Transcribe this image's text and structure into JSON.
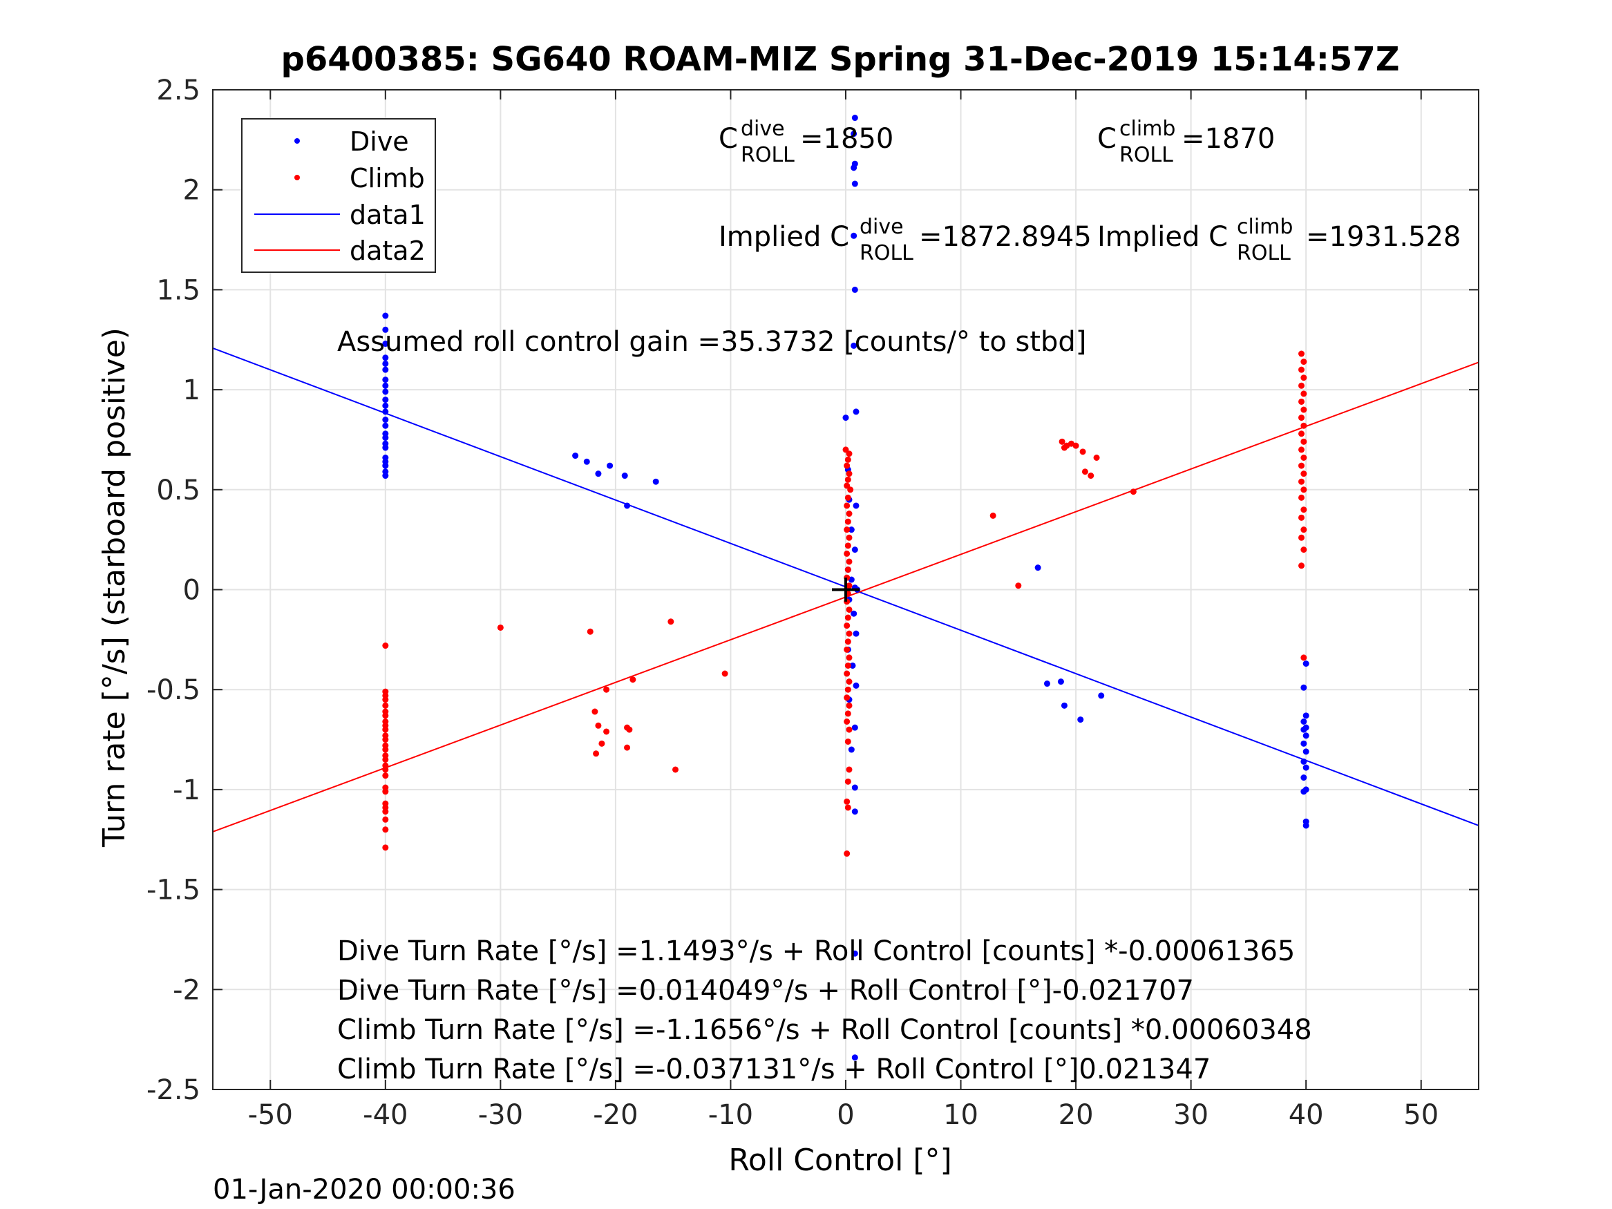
{
  "chart_data": {
    "type": "scatter",
    "title": "p6400385: SG640 ROAM-MIZ Spring 31-Dec-2019 15:14:57Z",
    "xlabel": "Roll Control [°]",
    "ylabel": "Turn rate [°/s] (starboard positive)",
    "xlim": [
      -55,
      55
    ],
    "ylim": [
      -2.5,
      2.5
    ],
    "xticks": [
      -50,
      -40,
      -30,
      -20,
      -10,
      0,
      10,
      20,
      30,
      40,
      50
    ],
    "xtick_labels": [
      "-50",
      "-40",
      "-30",
      "-20",
      "-10",
      "0",
      "10",
      "20",
      "30",
      "40",
      "50"
    ],
    "yticks": [
      2.5,
      2,
      1.5,
      1,
      0.5,
      0,
      -0.5,
      -1,
      -1.5,
      -2,
      -2.5
    ],
    "ytick_labels": [
      "2.5",
      "2",
      "1.5",
      "1",
      "0.5",
      "0",
      "-0.5",
      "-1",
      "-1.5",
      "-2",
      "-2.5"
    ],
    "grid": true,
    "legend": {
      "placement": "top-left",
      "entries": [
        {
          "label": "Dive",
          "style": "marker",
          "color": "#0000ff"
        },
        {
          "label": "Climb",
          "style": "marker",
          "color": "#ff0000"
        },
        {
          "label": "data1",
          "style": "line",
          "color": "#0000ff"
        },
        {
          "label": "data2",
          "style": "line",
          "color": "#ff0000"
        }
      ]
    },
    "lines": [
      {
        "name": "data1",
        "color": "#0000ff",
        "x": [
          -55,
          55
        ],
        "y": [
          1.208,
          -1.18
        ]
      },
      {
        "name": "data2",
        "color": "#ff0000",
        "x": [
          -55,
          55
        ],
        "y": [
          -1.211,
          1.137
        ]
      }
    ],
    "series": [
      {
        "name": "Dive",
        "color": "#0000ff",
        "points": [
          [
            -40,
            1.37
          ],
          [
            -40,
            1.3
          ],
          [
            -40,
            1.23
          ],
          [
            -40,
            1.16
          ],
          [
            -40,
            1.13
          ],
          [
            -40,
            1.1
          ],
          [
            -40,
            1.05
          ],
          [
            -40,
            1.02
          ],
          [
            -40,
            0.99
          ],
          [
            -40,
            0.95
          ],
          [
            -40,
            0.92
          ],
          [
            -40,
            0.89
          ],
          [
            -40,
            0.85
          ],
          [
            -40,
            0.82
          ],
          [
            -40,
            0.78
          ],
          [
            -40,
            0.76
          ],
          [
            -40,
            0.73
          ],
          [
            -40,
            0.71
          ],
          [
            -40,
            0.66
          ],
          [
            -40,
            0.64
          ],
          [
            -40,
            0.62
          ],
          [
            -40,
            0.59
          ],
          [
            -40,
            0.57
          ],
          [
            -23.5,
            0.67
          ],
          [
            -22.5,
            0.64
          ],
          [
            -21.5,
            0.58
          ],
          [
            -20.5,
            0.62
          ],
          [
            -19.2,
            0.57
          ],
          [
            -19.0,
            0.42
          ],
          [
            -16.5,
            0.54
          ],
          [
            0.8,
            2.36
          ],
          [
            0.7,
            2.28
          ],
          [
            0.8,
            2.13
          ],
          [
            0.7,
            2.11
          ],
          [
            0.8,
            2.03
          ],
          [
            0.7,
            1.77
          ],
          [
            0.8,
            1.5
          ],
          [
            0.7,
            1.22
          ],
          [
            0.0,
            0.86
          ],
          [
            0.9,
            0.89
          ],
          [
            0.2,
            0.6
          ],
          [
            0.9,
            0.42
          ],
          [
            0.3,
            0.45
          ],
          [
            0.5,
            0.3
          ],
          [
            0.8,
            0.2
          ],
          [
            0.2,
            0.1
          ],
          [
            0.5,
            0.05
          ],
          [
            0.8,
            0.01
          ],
          [
            1.0,
            0.0
          ],
          [
            0.3,
            -0.05
          ],
          [
            0.7,
            -0.12
          ],
          [
            0.9,
            -0.22
          ],
          [
            0.2,
            -0.3
          ],
          [
            0.6,
            -0.38
          ],
          [
            0.9,
            -0.48
          ],
          [
            0.3,
            -0.55
          ],
          [
            0.8,
            -0.69
          ],
          [
            0.5,
            -0.8
          ],
          [
            0.8,
            -0.99
          ],
          [
            0.8,
            -1.11
          ],
          [
            0.8,
            -1.82
          ],
          [
            0.8,
            -2.34
          ],
          [
            16.7,
            0.11
          ],
          [
            17.5,
            -0.47
          ],
          [
            18.7,
            -0.46
          ],
          [
            19.0,
            -0.58
          ],
          [
            20.4,
            -0.65
          ],
          [
            22.2,
            -0.53
          ],
          [
            40,
            -0.37
          ],
          [
            39.8,
            -0.49
          ],
          [
            40,
            -0.63
          ],
          [
            39.8,
            -0.66
          ],
          [
            40,
            -0.69
          ],
          [
            39.8,
            -0.7
          ],
          [
            40,
            -0.73
          ],
          [
            39.8,
            -0.77
          ],
          [
            40,
            -0.81
          ],
          [
            39.8,
            -0.86
          ],
          [
            40,
            -0.89
          ],
          [
            39.8,
            -0.94
          ],
          [
            40,
            -1.0
          ],
          [
            39.8,
            -1.01
          ],
          [
            40,
            -1.16
          ],
          [
            40,
            -1.18
          ]
        ]
      },
      {
        "name": "Climb",
        "color": "#ff0000",
        "points": [
          [
            -40,
            -0.28
          ],
          [
            -40,
            -0.51
          ],
          [
            -40,
            -0.53
          ],
          [
            -40,
            -0.55
          ],
          [
            -40,
            -0.58
          ],
          [
            -40,
            -0.61
          ],
          [
            -40,
            -0.63
          ],
          [
            -40,
            -0.66
          ],
          [
            -40,
            -0.68
          ],
          [
            -40,
            -0.7
          ],
          [
            -40,
            -0.73
          ],
          [
            -40,
            -0.75
          ],
          [
            -40,
            -0.78
          ],
          [
            -40,
            -0.8
          ],
          [
            -40,
            -0.83
          ],
          [
            -40,
            -0.85
          ],
          [
            -40,
            -0.88
          ],
          [
            -40,
            -0.9
          ],
          [
            -40,
            -0.93
          ],
          [
            -40,
            -0.99
          ],
          [
            -40,
            -1.01
          ],
          [
            -40,
            -1.07
          ],
          [
            -40,
            -1.09
          ],
          [
            -40,
            -1.11
          ],
          [
            -40,
            -1.15
          ],
          [
            -40,
            -1.2
          ],
          [
            -40,
            -1.29
          ],
          [
            -30,
            -0.19
          ],
          [
            -22.2,
            -0.21
          ],
          [
            -20.8,
            -0.5
          ],
          [
            -21.8,
            -0.61
          ],
          [
            -21.5,
            -0.68
          ],
          [
            -20.8,
            -0.71
          ],
          [
            -21.2,
            -0.77
          ],
          [
            -21.7,
            -0.82
          ],
          [
            -19.0,
            -0.69
          ],
          [
            -18.8,
            -0.7
          ],
          [
            -19.0,
            -0.79
          ],
          [
            -18.5,
            -0.45
          ],
          [
            -15.2,
            -0.16
          ],
          [
            -14.8,
            -0.9
          ],
          [
            -10.5,
            -0.42
          ],
          [
            0,
            0.7
          ],
          [
            0.3,
            0.68
          ],
          [
            0.2,
            0.65
          ],
          [
            0.1,
            0.62
          ],
          [
            0.3,
            0.58
          ],
          [
            0.2,
            0.55
          ],
          [
            0.1,
            0.52
          ],
          [
            0.4,
            0.5
          ],
          [
            0.2,
            0.46
          ],
          [
            0.1,
            0.42
          ],
          [
            0.3,
            0.38
          ],
          [
            0.2,
            0.34
          ],
          [
            0.1,
            0.3
          ],
          [
            0.3,
            0.26
          ],
          [
            0.2,
            0.22
          ],
          [
            0.1,
            0.18
          ],
          [
            0.3,
            0.14
          ],
          [
            0.2,
            0.1
          ],
          [
            0.1,
            0.06
          ],
          [
            0.3,
            0.02
          ],
          [
            0.2,
            -0.02
          ],
          [
            0.1,
            -0.06
          ],
          [
            0.3,
            -0.1
          ],
          [
            0.2,
            -0.14
          ],
          [
            0.1,
            -0.18
          ],
          [
            0.3,
            -0.22
          ],
          [
            0.2,
            -0.26
          ],
          [
            0.1,
            -0.3
          ],
          [
            0.3,
            -0.34
          ],
          [
            0.2,
            -0.38
          ],
          [
            0.1,
            -0.42
          ],
          [
            0.3,
            -0.46
          ],
          [
            0.2,
            -0.5
          ],
          [
            0.1,
            -0.54
          ],
          [
            0.3,
            -0.58
          ],
          [
            0.2,
            -0.62
          ],
          [
            0.1,
            -0.66
          ],
          [
            0.3,
            -0.7
          ],
          [
            0.2,
            -0.76
          ],
          [
            0.3,
            -0.9
          ],
          [
            0.2,
            -0.96
          ],
          [
            0.1,
            -1.06
          ],
          [
            0.2,
            -1.09
          ],
          [
            0.1,
            -1.32
          ],
          [
            12.8,
            0.37
          ],
          [
            15,
            0.02
          ],
          [
            18.8,
            0.74
          ],
          [
            19.2,
            0.72
          ],
          [
            19.0,
            0.71
          ],
          [
            19.6,
            0.73
          ],
          [
            20.0,
            0.72
          ],
          [
            20.6,
            0.69
          ],
          [
            20.8,
            0.59
          ],
          [
            21.3,
            0.57
          ],
          [
            21.8,
            0.66
          ],
          [
            25,
            0.49
          ],
          [
            39.6,
            1.18
          ],
          [
            39.8,
            1.14
          ],
          [
            39.6,
            1.1
          ],
          [
            39.8,
            1.06
          ],
          [
            39.6,
            1.02
          ],
          [
            39.8,
            0.98
          ],
          [
            39.6,
            0.94
          ],
          [
            39.8,
            0.9
          ],
          [
            39.6,
            0.86
          ],
          [
            39.8,
            0.82
          ],
          [
            39.6,
            0.78
          ],
          [
            39.8,
            0.74
          ],
          [
            39.6,
            0.7
          ],
          [
            39.8,
            0.66
          ],
          [
            39.6,
            0.62
          ],
          [
            39.8,
            0.58
          ],
          [
            39.6,
            0.54
          ],
          [
            39.8,
            0.5
          ],
          [
            39.6,
            0.46
          ],
          [
            39.8,
            0.4
          ],
          [
            39.6,
            0.36
          ],
          [
            39.8,
            0.3
          ],
          [
            39.6,
            0.26
          ],
          [
            39.8,
            0.2
          ],
          [
            39.6,
            0.12
          ],
          [
            39.8,
            -0.34
          ]
        ]
      }
    ],
    "annotations": {
      "c_dive_prefix": "C",
      "c_dive_sup": "dive",
      "c_dive_sub": "ROLL",
      "c_dive_value": " =1850",
      "c_climb_prefix": "C",
      "c_climb_sup": "climb",
      "c_climb_sub": "ROLL",
      "c_climb_value": " =1870",
      "implied_dive_prefix": "Implied C",
      "implied_dive_sup": "dive",
      "implied_dive_sub": "ROLL",
      "implied_dive_value": " =1872.8945",
      "implied_climb_prefix": "Implied C",
      "implied_climb_sup": "climb",
      "implied_climb_sub": "ROLL",
      "implied_climb_value": " =1931.528",
      "gain": "Assumed roll control gain =35.3732 [counts/° to stbd]",
      "eq1": "Dive Turn Rate [°/s] =1.1493°/s + Roll Control [counts] *-0.00061365",
      "eq2": "Dive Turn Rate [°/s] =0.014049°/s + Roll Control [°]-0.021707",
      "eq3": "Climb Turn Rate [°/s] =-1.1656°/s + Roll Control [counts] *0.00060348",
      "eq4": "Climb Turn Rate [°/s] =-0.037131°/s + Roll Control [°]0.021347"
    },
    "timestamp": "01-Jan-2020 00:00:36"
  }
}
